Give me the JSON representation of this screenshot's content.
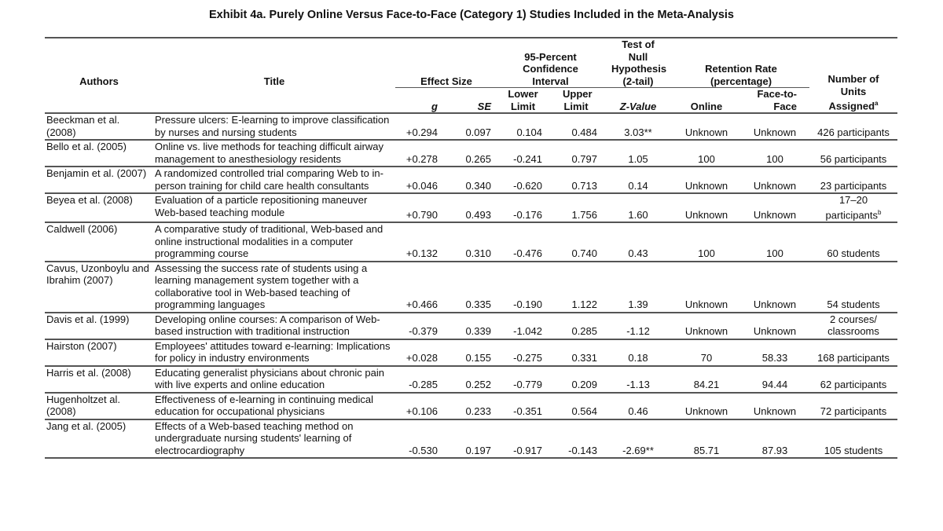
{
  "title": "Exhibit 4a. Purely Online Versus Face-to-Face (Category 1) Studies Included in the Meta-Analysis",
  "headers": {
    "authors": "Authors",
    "title": "Title",
    "effect_size": "Effect Size",
    "g": "g",
    "se": "SE",
    "ci": "95-Percent Confidence Interval",
    "lower": "Lower Limit",
    "upper": "Upper Limit",
    "null_test": "Test of Null Hypothesis (2-tail)",
    "z": "Z-Value",
    "retention": "Retention Rate (percentage)",
    "online": "Online",
    "f2f": "Face-to-Face",
    "units": "Number of Units Assigned",
    "units_note": "a"
  },
  "rows": [
    {
      "authors": "Beeckman et al. (2008)",
      "title": "Pressure ulcers: E-learning to improve classification by nurses and nursing students",
      "g": "+0.294",
      "se": "0.097",
      "lower": "0.104",
      "upper": "0.484",
      "z": "3.03**",
      "online": "Unknown",
      "f2f": "Unknown",
      "units": "426 participants",
      "note": ""
    },
    {
      "authors": "Bello et al. (2005)",
      "title": "Online vs. live methods for teaching difficult airway management to anesthesiology residents",
      "g": "+0.278",
      "se": "0.265",
      "lower": "-0.241",
      "upper": "0.797",
      "z": "1.05",
      "online": "100",
      "f2f": "100",
      "units": "56 participants",
      "note": ""
    },
    {
      "authors": "Benjamin et al. (2007)",
      "title": "A randomized controlled trial comparing Web to in-person training for child care health consultants",
      "g": "+0.046",
      "se": "0.340",
      "lower": "-0.620",
      "upper": "0.713",
      "z": "0.14",
      "online": "Unknown",
      "f2f": "Unknown",
      "units": "23 participants",
      "note": ""
    },
    {
      "authors": "Beyea et al. (2008)",
      "title": "Evaluation of a particle repositioning maneuver Web-based teaching module",
      "g": "+0.790",
      "se": "0.493",
      "lower": "-0.176",
      "upper": "1.756",
      "z": "1.60",
      "online": "Unknown",
      "f2f": "Unknown",
      "units": "17–20 participants",
      "note": "b"
    },
    {
      "authors": "Caldwell (2006)",
      "title": "A comparative study of traditional, Web-based and online instructional modalities in a computer programming course",
      "g": "+0.132",
      "se": "0.310",
      "lower": "-0.476",
      "upper": "0.740",
      "z": "0.43",
      "online": "100",
      "f2f": "100",
      "units": "60 students",
      "note": ""
    },
    {
      "authors": "Cavus, Uzonboylu and Ibrahim (2007)",
      "title": "Assessing the success rate of students using a learning management system together with a collaborative tool in Web-based teaching of programming languages",
      "g": "+0.466",
      "se": "0.335",
      "lower": "-0.190",
      "upper": "1.122",
      "z": "1.39",
      "online": "Unknown",
      "f2f": "Unknown",
      "units": "54 students",
      "note": ""
    },
    {
      "authors": "Davis et al. (1999)",
      "title": "Developing online courses: A comparison of Web-based instruction with traditional instruction",
      "g": "-0.379",
      "se": "0.339",
      "lower": "-1.042",
      "upper": "0.285",
      "z": "-1.12",
      "online": "Unknown",
      "f2f": "Unknown",
      "units": "2 courses/ classrooms",
      "note": ""
    },
    {
      "authors": "Hairston (2007)",
      "title": "Employees' attitudes toward e-learning: Implications for policy in industry environments",
      "g": "+0.028",
      "se": "0.155",
      "lower": "-0.275",
      "upper": "0.331",
      "z": "0.18",
      "online": "70",
      "f2f": "58.33",
      "units": "168 participants",
      "note": ""
    },
    {
      "authors": "Harris et al. (2008)",
      "title": "Educating generalist physicians about chronic pain with live experts and online education",
      "g": "-0.285",
      "se": "0.252",
      "lower": "-0.779",
      "upper": "0.209",
      "z": "-1.13",
      "online": "84.21",
      "f2f": "94.44",
      "units": "62 participants",
      "note": ""
    },
    {
      "authors": "Hugenholtzet al. (2008)",
      "title": "Effectiveness of e-learning in continuing medical education for occupational physicians",
      "g": "+0.106",
      "se": "0.233",
      "lower": "-0.351",
      "upper": "0.564",
      "z": "0.46",
      "online": "Unknown",
      "f2f": "Unknown",
      "units": "72 participants",
      "note": ""
    },
    {
      "authors": "Jang et al. (2005)",
      "title": "Effects of a Web-based teaching method on undergraduate nursing students' learning of electrocardiography",
      "g": "-0.530",
      "se": "0.197",
      "lower": "-0.917",
      "upper": "-0.143",
      "z": "-2.69**",
      "online": "85.71",
      "f2f": "87.93",
      "units": "105 students",
      "note": ""
    }
  ]
}
